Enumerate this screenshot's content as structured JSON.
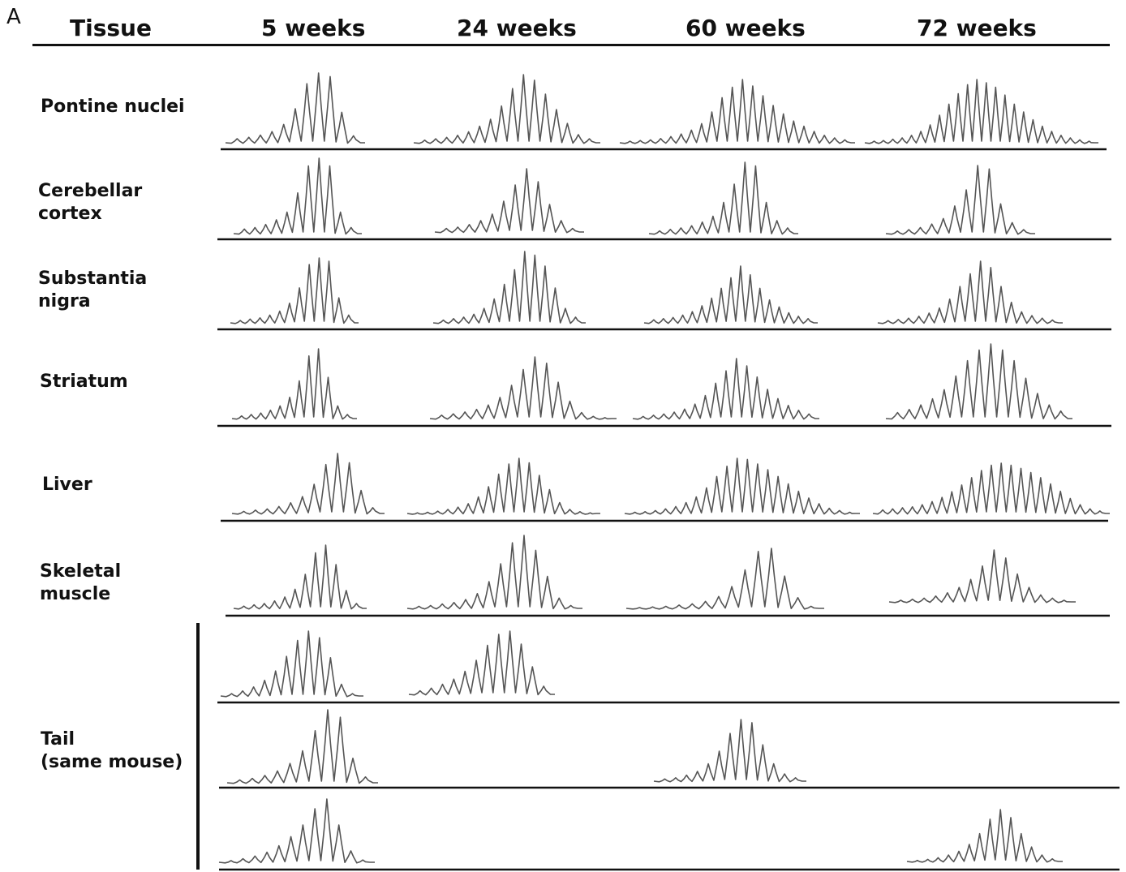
{
  "panel_label": "A",
  "header": {
    "tissue": "Tissue",
    "col_5": "5 weeks",
    "col_24": "24 weeks",
    "col_60": "60 weeks",
    "col_72": "72 weeks"
  },
  "rows": [
    {
      "line1": "Pontine nuclei",
      "line2": ""
    },
    {
      "line1": "Cerebellar",
      "line2": "cortex"
    },
    {
      "line1": "Substantia",
      "line2": "nigra"
    },
    {
      "line1": "Striatum",
      "line2": ""
    },
    {
      "line1": "Liver",
      "line2": ""
    },
    {
      "line1": "Skeletal",
      "line2": "muscle"
    },
    {
      "line1": "Tail",
      "line2": "(same mouse)"
    }
  ],
  "colors": {
    "trace": "#555555",
    "axis": "#111111"
  },
  "chart_data": {
    "type": "line",
    "description_columns": [
      "5 weeks",
      "24 weeks",
      "60 weeks",
      "72 weeks"
    ],
    "panels": [
      {
        "tissue": "Pontine nuclei",
        "column": "5 weeks",
        "peaks": [
          0.08,
          0.1,
          0.13,
          0.18,
          0.28,
          0.5,
          0.85,
          1.0,
          0.95,
          0.45,
          0.12
        ]
      },
      {
        "tissue": "Pontine nuclei",
        "column": "24 weeks",
        "peaks": [
          0.06,
          0.08,
          0.1,
          0.13,
          0.18,
          0.26,
          0.36,
          0.55,
          0.8,
          1.0,
          0.92,
          0.72,
          0.5,
          0.3,
          0.14,
          0.08
        ]
      },
      {
        "tissue": "Pontine nuclei",
        "column": "60 weeks",
        "peaks": [
          0.05,
          0.06,
          0.07,
          0.09,
          0.12,
          0.16,
          0.22,
          0.32,
          0.5,
          0.72,
          0.88,
          1.0,
          0.9,
          0.75,
          0.6,
          0.47,
          0.36,
          0.28,
          0.2,
          0.14,
          0.1,
          0.07
        ]
      },
      {
        "tissue": "Pontine nuclei",
        "column": "72 weeks",
        "peaks": [
          0.05,
          0.06,
          0.08,
          0.1,
          0.14,
          0.2,
          0.3,
          0.45,
          0.62,
          0.78,
          0.92,
          1.0,
          0.95,
          0.88,
          0.76,
          0.62,
          0.5,
          0.38,
          0.28,
          0.2,
          0.14,
          0.1,
          0.07,
          0.05
        ]
      },
      {
        "tissue": "Cerebellar cortex",
        "column": "5 weeks",
        "peaks": [
          0.08,
          0.1,
          0.14,
          0.2,
          0.3,
          0.55,
          0.9,
          1.0,
          0.9,
          0.3,
          0.1
        ]
      },
      {
        "tissue": "Cerebellar cortex",
        "column": "24 weeks",
        "peaks": [
          0.08,
          0.1,
          0.14,
          0.2,
          0.3,
          0.5,
          0.75,
          1.0,
          0.8,
          0.45,
          0.2,
          0.08
        ]
      },
      {
        "tissue": "Cerebellar cortex",
        "column": "60 weeks",
        "peaks": [
          0.06,
          0.08,
          0.1,
          0.13,
          0.18,
          0.26,
          0.45,
          0.7,
          1.0,
          0.95,
          0.45,
          0.2,
          0.1
        ]
      },
      {
        "tissue": "Cerebellar cortex",
        "column": "72 weeks",
        "peaks": [
          0.06,
          0.08,
          0.11,
          0.16,
          0.24,
          0.42,
          0.65,
          1.0,
          0.95,
          0.45,
          0.18,
          0.08
        ]
      },
      {
        "tissue": "Substantia nigra",
        "column": "5 weeks",
        "peaks": [
          0.06,
          0.08,
          0.1,
          0.14,
          0.2,
          0.32,
          0.55,
          0.9,
          1.0,
          0.95,
          0.4,
          0.14
        ]
      },
      {
        "tissue": "Substantia nigra",
        "column": "24 weeks",
        "peaks": [
          0.06,
          0.08,
          0.1,
          0.14,
          0.22,
          0.35,
          0.55,
          0.75,
          1.0,
          0.95,
          0.8,
          0.5,
          0.22,
          0.1
        ]
      },
      {
        "tissue": "Substantia nigra",
        "column": "60 weeks",
        "peaks": [
          0.08,
          0.1,
          0.12,
          0.16,
          0.22,
          0.32,
          0.45,
          0.62,
          0.8,
          1.0,
          0.85,
          0.62,
          0.42,
          0.3,
          0.2,
          0.14,
          0.1
        ]
      },
      {
        "tissue": "Substantia nigra",
        "column": "72 weeks",
        "peaks": [
          0.06,
          0.08,
          0.1,
          0.13,
          0.18,
          0.26,
          0.4,
          0.6,
          0.8,
          1.0,
          0.9,
          0.6,
          0.35,
          0.2,
          0.14,
          0.1,
          0.07
        ]
      },
      {
        "tissue": "Striatum",
        "column": "5 weeks",
        "peaks": [
          0.06,
          0.08,
          0.1,
          0.14,
          0.2,
          0.32,
          0.55,
          0.9,
          1.0,
          0.6,
          0.2,
          0.08
        ]
      },
      {
        "tissue": "Striatum",
        "column": "24 weeks",
        "peaks": [
          0.08,
          0.1,
          0.13,
          0.17,
          0.24,
          0.36,
          0.55,
          0.8,
          1.0,
          0.9,
          0.6,
          0.3,
          0.12,
          0.06,
          0.04
        ]
      },
      {
        "tissue": "Striatum",
        "column": "60 weeks",
        "peaks": [
          0.06,
          0.08,
          0.1,
          0.13,
          0.18,
          0.26,
          0.4,
          0.6,
          0.8,
          1.0,
          0.88,
          0.7,
          0.5,
          0.35,
          0.24,
          0.16,
          0.1
        ]
      },
      {
        "tissue": "Striatum",
        "column": "72 weeks",
        "peaks": [
          0.1,
          0.14,
          0.2,
          0.28,
          0.4,
          0.58,
          0.78,
          0.92,
          1.0,
          0.92,
          0.78,
          0.55,
          0.35,
          0.2,
          0.12
        ]
      },
      {
        "tissue": "Liver",
        "column": "5 weeks",
        "peaks": [
          0.06,
          0.08,
          0.1,
          0.14,
          0.2,
          0.3,
          0.5,
          0.82,
          1.0,
          0.85,
          0.4,
          0.12
        ]
      },
      {
        "tissue": "Liver",
        "column": "24 weeks",
        "peaks": [
          0.04,
          0.05,
          0.07,
          0.1,
          0.14,
          0.2,
          0.32,
          0.5,
          0.72,
          0.9,
          1.0,
          0.92,
          0.7,
          0.45,
          0.22,
          0.1,
          0.06,
          0.04
        ]
      },
      {
        "tissue": "Liver",
        "column": "60 weeks",
        "peaks": [
          0.05,
          0.06,
          0.08,
          0.11,
          0.15,
          0.22,
          0.32,
          0.48,
          0.68,
          0.86,
          1.0,
          0.98,
          0.9,
          0.8,
          0.68,
          0.55,
          0.42,
          0.3,
          0.2,
          0.12,
          0.08,
          0.05
        ]
      },
      {
        "tissue": "Liver",
        "column": "72 weeks",
        "peaks": [
          0.1,
          0.12,
          0.14,
          0.16,
          0.2,
          0.26,
          0.34,
          0.45,
          0.58,
          0.72,
          0.86,
          0.96,
          1.0,
          0.96,
          0.9,
          0.82,
          0.72,
          0.6,
          0.46,
          0.32,
          0.2,
          0.12,
          0.08
        ]
      },
      {
        "tissue": "Skeletal muscle",
        "column": "5 weeks",
        "peaks": [
          0.06,
          0.08,
          0.1,
          0.14,
          0.2,
          0.32,
          0.55,
          0.88,
          1.0,
          0.7,
          0.3,
          0.1
        ]
      },
      {
        "tissue": "Skeletal muscle",
        "column": "24 weeks",
        "peaks": [
          0.05,
          0.06,
          0.08,
          0.1,
          0.14,
          0.22,
          0.38,
          0.62,
          0.9,
          1.0,
          0.8,
          0.45,
          0.16,
          0.06
        ]
      },
      {
        "tissue": "Skeletal muscle",
        "column": "60 weeks",
        "peaks": [
          0.04,
          0.05,
          0.06,
          0.08,
          0.1,
          0.14,
          0.22,
          0.38,
          0.65,
          0.95,
          1.0,
          0.55,
          0.2,
          0.06
        ]
      },
      {
        "tissue": "Skeletal muscle",
        "column": "72 weeks",
        "peaks": [
          0.06,
          0.08,
          0.1,
          0.14,
          0.2,
          0.3,
          0.45,
          0.7,
          1.0,
          0.85,
          0.55,
          0.3,
          0.16,
          0.1,
          0.06
        ]
      },
      {
        "tissue": "Tail (same mouse)",
        "column": "5 weeks",
        "peaks": [
          0.06,
          0.1,
          0.16,
          0.26,
          0.4,
          0.62,
          0.86,
          1.0,
          0.9,
          0.6,
          0.2,
          0.06
        ]
      },
      {
        "tissue": "Tail (same mouse)",
        "column": "24 weeks",
        "peaks": [
          0.08,
          0.12,
          0.18,
          0.26,
          0.38,
          0.55,
          0.78,
          0.95,
          1.0,
          0.8,
          0.45,
          0.15
        ]
      },
      {
        "tissue": "Tail (same mouse)",
        "column": "5 weeks",
        "peaks": [
          0.06,
          0.08,
          0.12,
          0.18,
          0.28,
          0.45,
          0.72,
          1.0,
          0.9,
          0.35,
          0.1
        ]
      },
      {
        "tissue": "Tail (same mouse)",
        "column": "60 weeks",
        "peaks": [
          0.06,
          0.08,
          0.12,
          0.18,
          0.3,
          0.5,
          0.78,
          1.0,
          0.95,
          0.6,
          0.3,
          0.14,
          0.08
        ]
      },
      {
        "tissue": "Tail (same mouse)",
        "column": "5 weeks",
        "peaks": [
          0.05,
          0.08,
          0.12,
          0.18,
          0.28,
          0.42,
          0.6,
          0.85,
          1.0,
          0.6,
          0.2,
          0.06
        ]
      },
      {
        "tissue": "Tail (same mouse)",
        "column": "72 weeks",
        "peaks": [
          0.05,
          0.07,
          0.1,
          0.15,
          0.22,
          0.35,
          0.55,
          0.82,
          1.0,
          0.85,
          0.55,
          0.3,
          0.15,
          0.08
        ]
      }
    ]
  }
}
